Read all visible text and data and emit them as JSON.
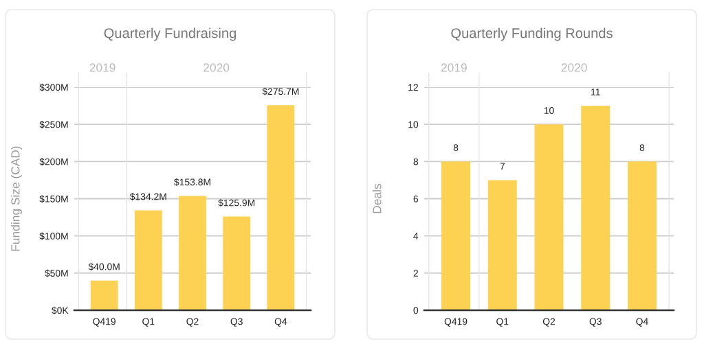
{
  "chart_data": [
    {
      "type": "bar",
      "title": "Quarterly Fundraising",
      "ylabel": "Funding Size (CAD)",
      "categories": [
        "Q419",
        "Q1",
        "Q2",
        "Q3",
        "Q4"
      ],
      "values": [
        40.0,
        134.2,
        153.8,
        125.9,
        275.7
      ],
      "value_labels": [
        "$40.0M",
        "$134.2M",
        "$153.8M",
        "$125.9M",
        "$275.7M"
      ],
      "color": "#fdd152",
      "ylim": [
        0,
        300
      ],
      "yticks": [
        {
          "value": 0,
          "label": "$0K"
        },
        {
          "value": 50,
          "label": "$50M"
        },
        {
          "value": 100,
          "label": "$100M"
        },
        {
          "value": 150,
          "label": "$150M"
        },
        {
          "value": 200,
          "label": "$200M"
        },
        {
          "value": 250,
          "label": "$250M"
        },
        {
          "value": 300,
          "label": "$300M"
        }
      ],
      "grid": "y",
      "annotations": [
        "2019",
        "2020"
      ]
    },
    {
      "type": "bar",
      "title": "Quarterly Funding Rounds",
      "ylabel": "Deals",
      "categories": [
        "Q419",
        "Q1",
        "Q2",
        "Q3",
        "Q4"
      ],
      "values": [
        8,
        7,
        10,
        11,
        8
      ],
      "data_labels": true,
      "color": "#fdd152",
      "ylim": [
        0,
        12
      ],
      "yticks": [
        0,
        2,
        4,
        6,
        8,
        10,
        12
      ],
      "grid": "y",
      "annotations": [
        "2019",
        "2020"
      ]
    }
  ]
}
